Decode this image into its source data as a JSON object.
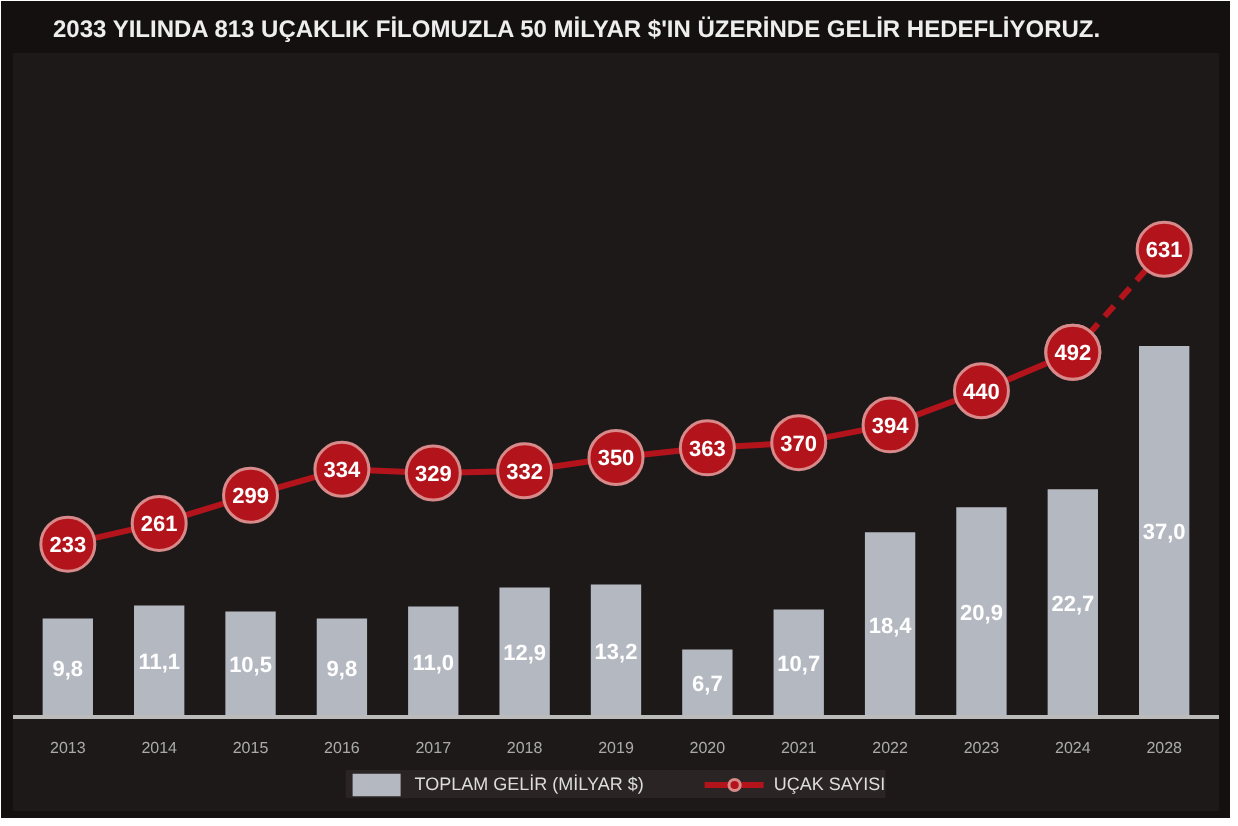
{
  "chart_data": {
    "type": "bar",
    "title": "2033 YILINDA 813 UÇAKLIK FİLOMUZLA 50 MİLYAR $'IN ÜZERİNDE GELİR HEDEFLİYORUZ.",
    "categories": [
      "2013",
      "2014",
      "2015",
      "2016",
      "2017",
      "2018",
      "2019",
      "2020",
      "2021",
      "2022",
      "2023",
      "2024",
      "2028"
    ],
    "series": [
      {
        "name": "TOPLAM GELİR (MİLYAR $)",
        "color": "#b4b8c0",
        "values": [
          9.8,
          11.1,
          10.5,
          9.8,
          11.0,
          12.9,
          13.2,
          6.7,
          10.7,
          18.4,
          20.9,
          22.7,
          37.0
        ],
        "value_labels": [
          "9,8",
          "11,1",
          "10,5",
          "9,8",
          "11,0",
          "12,9",
          "13,2",
          "6,7",
          "10,7",
          "18,4",
          "20,9",
          "22,7",
          "37,0"
        ]
      },
      {
        "name": "UÇAK SAYISI",
        "type": "line",
        "axis": "y2",
        "color": "#b3141b",
        "marker": "circle",
        "line_style": "solid",
        "values": [
          233,
          261,
          299,
          334,
          329,
          332,
          350,
          363,
          370,
          394,
          440,
          492,
          null
        ],
        "value_labels": [
          "233",
          "261",
          "299",
          "334",
          "329",
          "332",
          "350",
          "363",
          "370",
          "394",
          "440",
          "492",
          null
        ]
      },
      {
        "type": "line",
        "axis": "y2",
        "color": "#b3141b",
        "marker": "circle",
        "line_style": "dashed",
        "values": [
          null,
          null,
          null,
          null,
          null,
          null,
          null,
          null,
          null,
          null,
          null,
          492,
          631
        ],
        "value_labels": [
          null,
          null,
          null,
          null,
          null,
          null,
          null,
          null,
          null,
          null,
          null,
          null,
          "631"
        ]
      }
    ],
    "tick_labels": "x",
    "grid": false,
    "legend": "bottom"
  }
}
